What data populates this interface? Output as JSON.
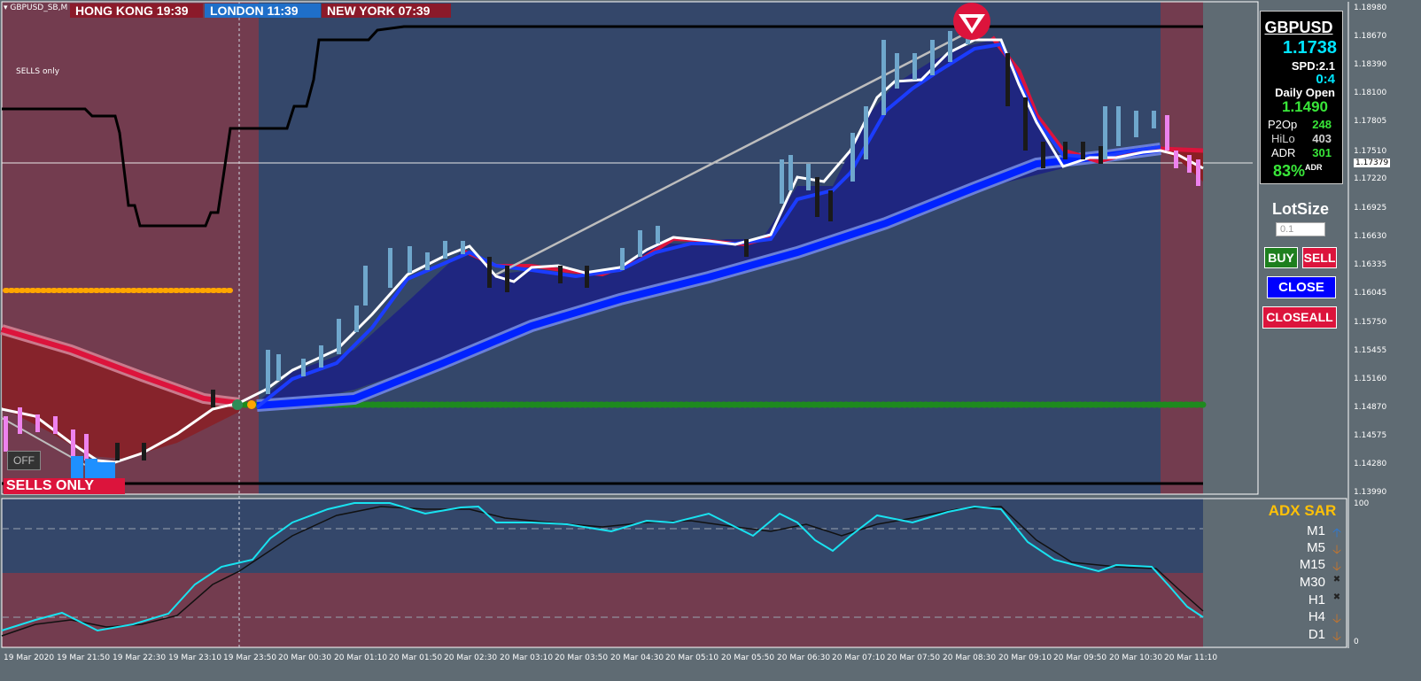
{
  "symbol_tab": "GBPUSD_SB,M",
  "sessions": [
    {
      "label": "HONG KONG  19:39",
      "color": "#8b1a2a"
    },
    {
      "label": "LONDON  11:39",
      "color": "#1f6fc9"
    },
    {
      "label": "NEW YORK  07:39",
      "color": "#8b1a2a"
    }
  ],
  "chart_note": "SELLS only",
  "off_label": "OFF",
  "sells_only_banner": "SELLS ONLY",
  "info_panel": {
    "symbol": "GBPUSD",
    "price": "1.1738",
    "spread": "SPD:2.1",
    "ratio": "0:4",
    "daily_open_label": "Daily Open",
    "daily_open_value": "1.1490",
    "rows": [
      {
        "label": "P2Op",
        "value": "248",
        "color": "#39e639"
      },
      {
        "label": "HiLo",
        "value": "403",
        "color": "#cfcfcf"
      },
      {
        "label": "ADR",
        "value": "301",
        "color": "#39e639"
      }
    ],
    "adr_pct": "83%",
    "adr_sup": "ADR"
  },
  "trade_panel": {
    "lot_label": "LotSize",
    "lot_value": "0.1",
    "buy": "BUY",
    "sell": "SELL",
    "close": "CLOSE",
    "close_all": "CLOSEALL"
  },
  "price_axis": [
    "1.18980",
    "1.18670",
    "1.18390",
    "1.18100",
    "1.17805",
    "1.17510",
    "1.17379",
    "1.17220",
    "1.16925",
    "1.16630",
    "1.16335",
    "1.16045",
    "1.15750",
    "1.15455",
    "1.15160",
    "1.14870",
    "1.14575",
    "1.14280",
    "1.13990"
  ],
  "current_price": "1.17379",
  "time_axis": [
    "19 Mar 2020",
    "19 Mar 21:50",
    "19 Mar 22:30",
    "19 Mar 23:10",
    "19 Mar 23:50",
    "20 Mar 00:30",
    "20 Mar 01:10",
    "20 Mar 01:50",
    "20 Mar 02:30",
    "20 Mar 03:10",
    "20 Mar 03:50",
    "20 Mar 04:30",
    "20 Mar 05:10",
    "20 Mar 05:50",
    "20 Mar 06:30",
    "20 Mar 07:10",
    "20 Mar 07:50",
    "20 Mar 08:30",
    "20 Mar 09:10",
    "20 Mar 09:50",
    "20 Mar 10:30",
    "20 Mar 11:10"
  ],
  "sub_axis": {
    "top": "100",
    "bottom": "0"
  },
  "adx_panel": {
    "title": "ADX SAR",
    "timeframes": [
      {
        "label": "M1",
        "arrow": "🡡",
        "color": "#2a7ad8"
      },
      {
        "label": "M5",
        "arrow": "🡣",
        "color": "#c9752a"
      },
      {
        "label": "M15",
        "arrow": "🡣",
        "color": "#c9752a"
      },
      {
        "label": "M30",
        "arrow": "✖",
        "color": "#222222"
      },
      {
        "label": "H1",
        "arrow": "✖",
        "color": "#222222"
      },
      {
        "label": "H4",
        "arrow": "🡣",
        "color": "#c9752a"
      },
      {
        "label": "D1",
        "arrow": "🡣",
        "color": "#c9752a"
      }
    ]
  },
  "colors": {
    "bear_zone": "#733c4f",
    "bull_zone": "#34476a",
    "accent_red": "#dc143c",
    "accent_blue": "#0a2bff",
    "cyan_text": "#00e5ff"
  }
}
